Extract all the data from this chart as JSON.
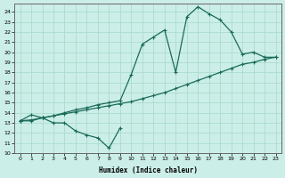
{
  "xlabel": "Humidex (Indice chaleur)",
  "bg_color": "#cceee8",
  "grid_color": "#aaddcc",
  "line_color": "#1a6b5a",
  "xlim": [
    -0.5,
    23.5
  ],
  "ylim": [
    10,
    24.8
  ],
  "xticks": [
    0,
    1,
    2,
    3,
    4,
    5,
    6,
    7,
    8,
    9,
    10,
    11,
    12,
    13,
    14,
    15,
    16,
    17,
    18,
    19,
    20,
    21,
    22,
    23
  ],
  "yticks": [
    10,
    11,
    12,
    13,
    14,
    15,
    16,
    17,
    18,
    19,
    20,
    21,
    22,
    23,
    24
  ],
  "line_dip_x": [
    0,
    1,
    2,
    3,
    4,
    5,
    6,
    7,
    8,
    9
  ],
  "line_dip_y": [
    13.2,
    13.8,
    13.5,
    13.0,
    13.0,
    12.2,
    11.8,
    11.5,
    10.5,
    12.5
  ],
  "line_peak_x": [
    0,
    1,
    2,
    3,
    4,
    5,
    6,
    7,
    8,
    9,
    10,
    11,
    12,
    13,
    14,
    15,
    16,
    17,
    18,
    19,
    20,
    21,
    22,
    23
  ],
  "line_peak_y": [
    13.2,
    13.2,
    13.5,
    13.7,
    14.0,
    14.3,
    14.5,
    14.8,
    15.0,
    15.2,
    17.8,
    20.8,
    21.5,
    22.2,
    18.0,
    23.5,
    24.5,
    23.8,
    23.2,
    22.0,
    19.8,
    20.0,
    19.5,
    19.5
  ],
  "line_rise_x": [
    0,
    1,
    2,
    3,
    4,
    5,
    6,
    7,
    8,
    9,
    10,
    11,
    12,
    13,
    14,
    15,
    16,
    17,
    18,
    19,
    20,
    21,
    22,
    23
  ],
  "line_rise_y": [
    13.2,
    13.3,
    13.5,
    13.7,
    13.9,
    14.1,
    14.3,
    14.5,
    14.7,
    14.9,
    15.1,
    15.4,
    15.7,
    16.0,
    16.4,
    16.8,
    17.2,
    17.6,
    18.0,
    18.4,
    18.8,
    19.0,
    19.3,
    19.5
  ]
}
